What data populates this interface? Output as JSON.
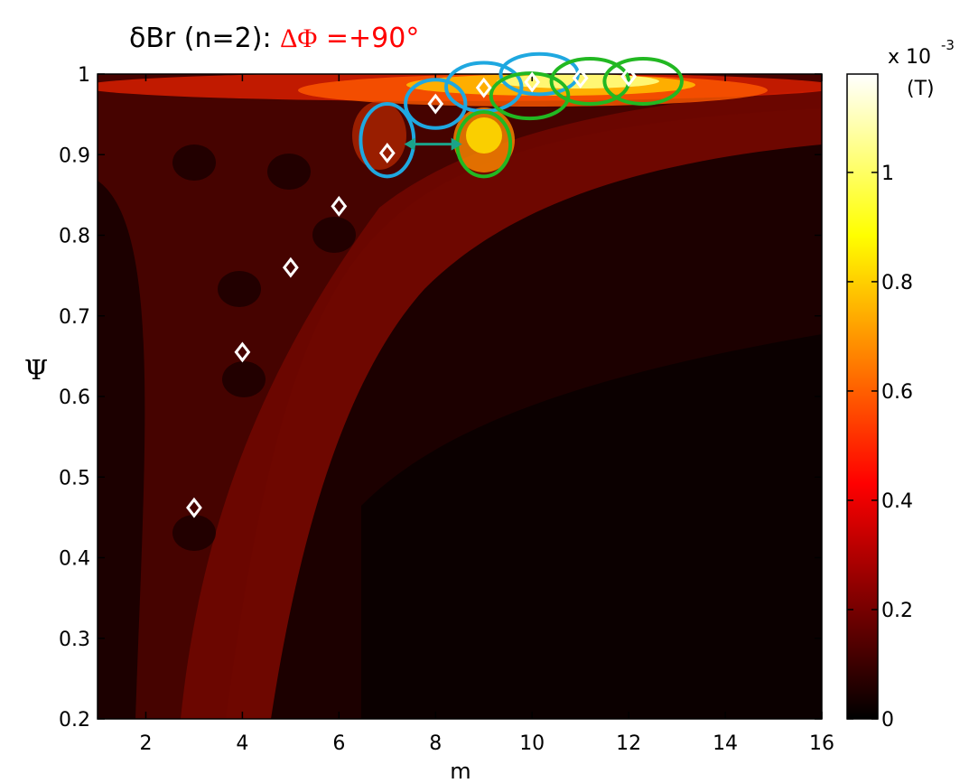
{
  "chart_data": {
    "type": "heatmap",
    "title": {
      "prefix": "δBr (n=2): ",
      "delta_phi": "ΔΦ",
      "value": " =+90°"
    },
    "xlabel": "m",
    "ylabel": "Ψ",
    "xlim": [
      1,
      16
    ],
    "ylim": [
      0.2,
      1
    ],
    "xticks": [
      "2",
      "4",
      "6",
      "8",
      "10",
      "12",
      "14",
      "16"
    ],
    "yticks": [
      "0.2",
      "0.3",
      "0.4",
      "0.5",
      "0.6",
      "0.7",
      "0.8",
      "0.9",
      "1"
    ],
    "colorbar": {
      "colormap": "hot",
      "exponent_label": "x 10",
      "exponent": "-3",
      "unit": "(T)",
      "range": [
        0,
        0.00118
      ],
      "ticks": [
        "0",
        "0.2",
        "0.4",
        "0.6",
        "0.8",
        "1"
      ]
    },
    "markers": [
      {
        "m": 3,
        "psi": 0.462
      },
      {
        "m": 4,
        "psi": 0.655
      },
      {
        "m": 5,
        "psi": 0.76
      },
      {
        "m": 6,
        "psi": 0.836
      },
      {
        "m": 7,
        "psi": 0.902
      },
      {
        "m": 8,
        "psi": 0.963
      },
      {
        "m": 9,
        "psi": 0.983
      },
      {
        "m": 10,
        "psi": 0.99
      },
      {
        "m": 11,
        "psi": 0.995
      },
      {
        "m": 12,
        "psi": 0.997
      }
    ],
    "annotations": {
      "blue_ellipses": [
        {
          "m": 7.0,
          "psi": 0.918,
          "rm": 0.55,
          "rpsi": 0.045
        },
        {
          "m": 8.0,
          "psi": 0.963,
          "rm": 0.62,
          "rpsi": 0.03
        },
        {
          "m": 9.0,
          "psi": 0.984,
          "rm": 0.78,
          "rpsi": 0.03
        },
        {
          "m": 10.15,
          "psi": 1.0,
          "rm": 0.8,
          "rpsi": 0.025
        }
      ],
      "green_ellipses": [
        {
          "m": 9.95,
          "psi": 0.973,
          "rm": 0.8,
          "rpsi": 0.028
        },
        {
          "m": 11.2,
          "psi": 0.991,
          "rm": 0.8,
          "rpsi": 0.028
        },
        {
          "m": 12.3,
          "psi": 0.991,
          "rm": 0.8,
          "rpsi": 0.028
        },
        {
          "m": 9.0,
          "psi": 0.913,
          "rm": 0.55,
          "rpsi": 0.04
        }
      ],
      "arrow": {
        "m_from": 7.35,
        "m_to": 8.55,
        "psi": 0.913
      }
    },
    "colors": {
      "blue_annotation": "#1fa8e0",
      "green_annotation": "#22b822",
      "arrow": "#1aa38a",
      "marker": "#ffffff"
    }
  }
}
